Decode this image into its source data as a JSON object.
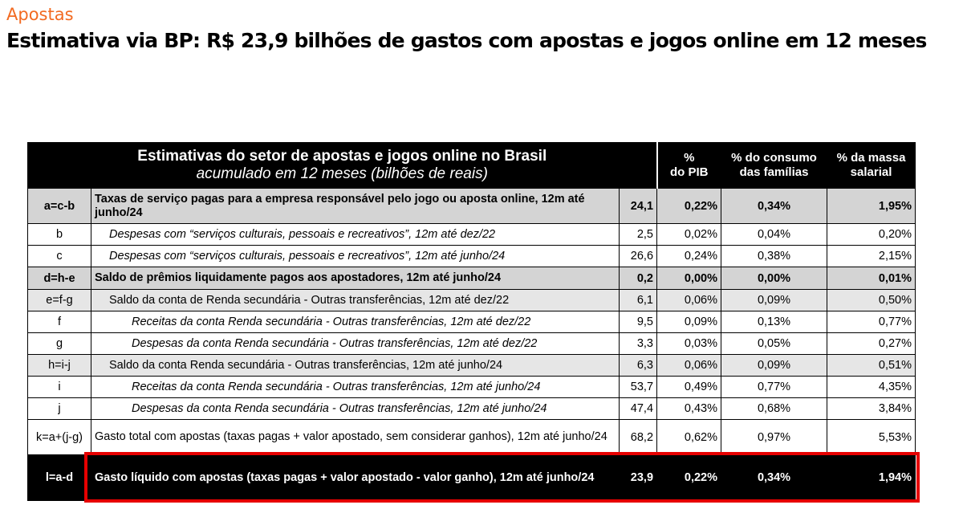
{
  "header": {
    "section": "Apostas",
    "title": "Estimativa via BP: R$ 23,9 bilhões de gastos com apostas e jogos online em 12 meses"
  },
  "table": {
    "title": "Estimativas do setor de apostas e jogos online no Brasil",
    "subtitle": "acumulado em 12 meses (bilhões de reais)",
    "col_pib_1": "%",
    "col_pib_2": "do PIB",
    "col_consumo_1": "% do consumo",
    "col_consumo_2": "das famílias",
    "col_massa_1": "% da massa",
    "col_massa_2": "salarial",
    "rows": [
      {
        "code": "a=c-b",
        "desc": "Taxas de serviço pagas para a empresa responsável pelo jogo ou aposta online, 12m até junho/24",
        "value": "24,1",
        "pib": "0,22%",
        "consumo": "0,34%",
        "massa": "1,95%"
      },
      {
        "code": "b",
        "desc": "Despesas com “serviços culturais, pessoais e recreativos”, 12m até dez/22",
        "value": "2,5",
        "pib": "0,02%",
        "consumo": "0,04%",
        "massa": "0,20%"
      },
      {
        "code": "c",
        "desc": "Despesas com “serviços culturais, pessoais e recreativos”, 12m até junho/24",
        "value": "26,6",
        "pib": "0,24%",
        "consumo": "0,38%",
        "massa": "2,15%"
      },
      {
        "code": "d=h-e",
        "desc": "Saldo de prêmios liquidamente pagos aos apostadores, 12m até junho/24",
        "value": "0,2",
        "pib": "0,00%",
        "consumo": "0,00%",
        "massa": "0,01%"
      },
      {
        "code": "e=f-g",
        "desc": "Saldo da conta de Renda secundária - Outras transferências, 12m até dez/22",
        "value": "6,1",
        "pib": "0,06%",
        "consumo": "0,09%",
        "massa": "0,50%"
      },
      {
        "code": "f",
        "desc": "Receitas da conta Renda secundária - Outras transferências, 12m até dez/22",
        "value": "9,5",
        "pib": "0,09%",
        "consumo": "0,13%",
        "massa": "0,77%"
      },
      {
        "code": "g",
        "desc": "Despesas da conta Renda secundária - Outras transferências, 12m até dez/22",
        "value": "3,3",
        "pib": "0,03%",
        "consumo": "0,05%",
        "massa": "0,27%"
      },
      {
        "code": "h=i-j",
        "desc": "Saldo da conta Renda secundária - Outras transferências, 12m até junho/24",
        "value": "6,3",
        "pib": "0,06%",
        "consumo": "0,09%",
        "massa": "0,51%"
      },
      {
        "code": "i",
        "desc": "Receitas da conta Renda secundária - Outras transferências, 12m até junho/24",
        "value": "53,7",
        "pib": "0,49%",
        "consumo": "0,77%",
        "massa": "4,35%"
      },
      {
        "code": "j",
        "desc": "Despesas da conta Renda secundária - Outras transferências, 12m até junho/24",
        "value": "47,4",
        "pib": "0,43%",
        "consumo": "0,68%",
        "massa": "3,84%"
      },
      {
        "code": "k=a+(j-g)",
        "desc": "Gasto total com apostas (taxas pagas + valor apostado,  sem considerar ganhos), 12m até junho/24",
        "value": "68,2",
        "pib": "0,62%",
        "consumo": "0,97%",
        "massa": "5,53%"
      },
      {
        "code": "l=a-d",
        "desc": "Gasto líquido com apostas (taxas pagas + valor apostado - valor ganho), 12m até junho/24",
        "value": "23,9",
        "pib": "0,22%",
        "consumo": "0,34%",
        "massa": "1,94%"
      }
    ]
  },
  "colors": {
    "accent": "#f26a21",
    "highlight_border": "#e60000",
    "header_bg": "#000000",
    "row_gray": "#d4d4d4",
    "row_light_gray": "#e6e6e6"
  }
}
